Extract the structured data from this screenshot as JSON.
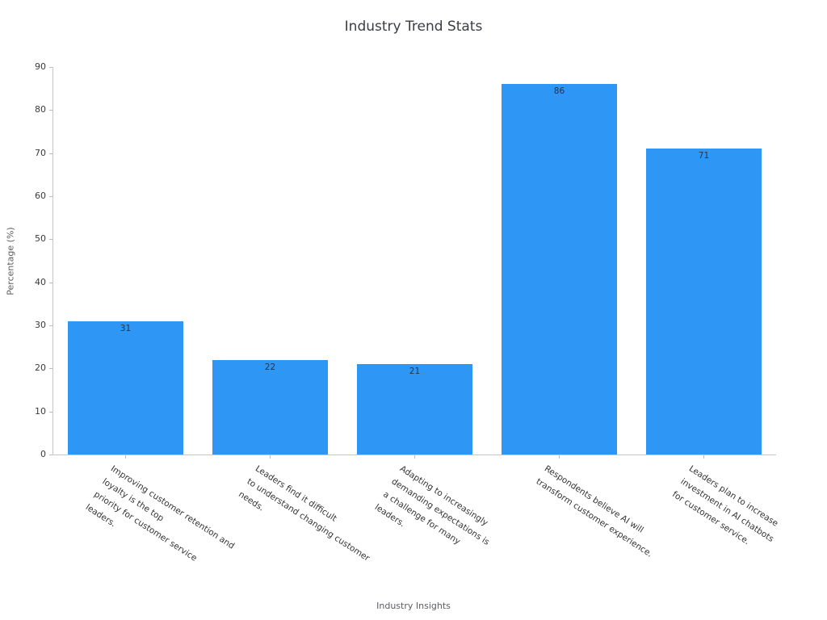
{
  "chart_data": {
    "type": "bar",
    "title": "Industry Trend Stats",
    "xlabel": "Industry Insights",
    "ylabel": "Percentage (%)",
    "ylim": [
      0,
      90
    ],
    "yticks": [
      0,
      10,
      20,
      30,
      40,
      50,
      60,
      70,
      80,
      90
    ],
    "grid": false,
    "legend_position": "none",
    "bar_color": "#2e96f5",
    "value_label_color": "#2f3338",
    "categories": [
      "Improving customer retention and\nloyalty is the top\npriority for customer service\nleaders.",
      "Leaders find it difficult\nto understand changing customer\nneeds.",
      "Adapting to increasingly\ndemanding expectations is\na challenge for many\nleaders.",
      "Respondents believe AI will\ntransform customer experience.",
      "Leaders plan to increase\ninvestment in AI chatbots\nfor customer service."
    ],
    "values": [
      31,
      22,
      21,
      86,
      71
    ]
  }
}
